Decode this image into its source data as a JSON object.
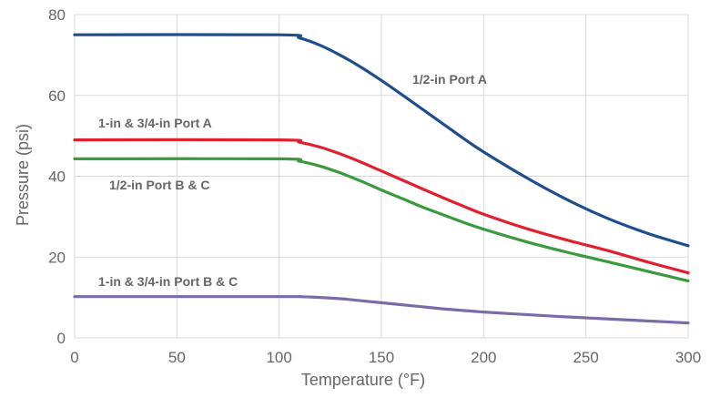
{
  "chart_data": {
    "type": "line",
    "title": "",
    "xlabel": "Temperature (°F)",
    "ylabel": "Pressure (psi)",
    "xlim": [
      0,
      300
    ],
    "ylim": [
      0,
      80
    ],
    "x_ticks": [
      0,
      50,
      100,
      150,
      200,
      250,
      300
    ],
    "y_ticks": [
      0,
      20,
      40,
      60,
      80
    ],
    "grid": true,
    "legend": "inline labels",
    "series": [
      {
        "name": "1/2-in Port A",
        "color": "#1f4e8c",
        "x": [
          0,
          100,
          110,
          120,
          130,
          140,
          150,
          160,
          170,
          180,
          190,
          200,
          220,
          240,
          260,
          280,
          300
        ],
        "y": [
          75,
          75,
          74.2,
          72.4,
          69.9,
          67,
          63.7,
          60.2,
          56.6,
          53,
          49.4,
          46,
          39.9,
          34.4,
          29.7,
          25.9,
          22.8
        ]
      },
      {
        "name": "1-in & 3/4-in Port A",
        "color": "#e0202e",
        "x": [
          0,
          100,
          110,
          120,
          130,
          140,
          150,
          160,
          170,
          180,
          190,
          200,
          220,
          240,
          260,
          280,
          300
        ],
        "y": [
          49,
          49,
          48.4,
          47.2,
          45.5,
          43.5,
          41.3,
          39.1,
          36.9,
          34.7,
          32.6,
          30.6,
          27.2,
          24.3,
          21.7,
          18.8,
          16.1
        ]
      },
      {
        "name": "1/2-in Port B & C",
        "color": "#3a9a3e",
        "x": [
          0,
          100,
          110,
          120,
          130,
          140,
          150,
          160,
          170,
          180,
          190,
          200,
          220,
          240,
          260,
          280,
          300
        ],
        "y": [
          44.3,
          44.3,
          43.7,
          42.5,
          40.8,
          38.8,
          36.6,
          34.5,
          32.4,
          30.5,
          28.6,
          26.9,
          23.9,
          21.3,
          18.9,
          16.5,
          14.1
        ]
      },
      {
        "name": "1-in & 3/4-in Port B & C",
        "color": "#7b6ba8",
        "x": [
          0,
          100,
          110,
          120,
          130,
          140,
          150,
          160,
          170,
          180,
          200,
          220,
          240,
          260,
          280,
          300
        ],
        "y": [
          10.2,
          10.2,
          10.2,
          10,
          9.7,
          9.2,
          8.7,
          8.2,
          7.7,
          7.2,
          6.4,
          5.8,
          5.2,
          4.7,
          4.2,
          3.7
        ]
      }
    ]
  }
}
